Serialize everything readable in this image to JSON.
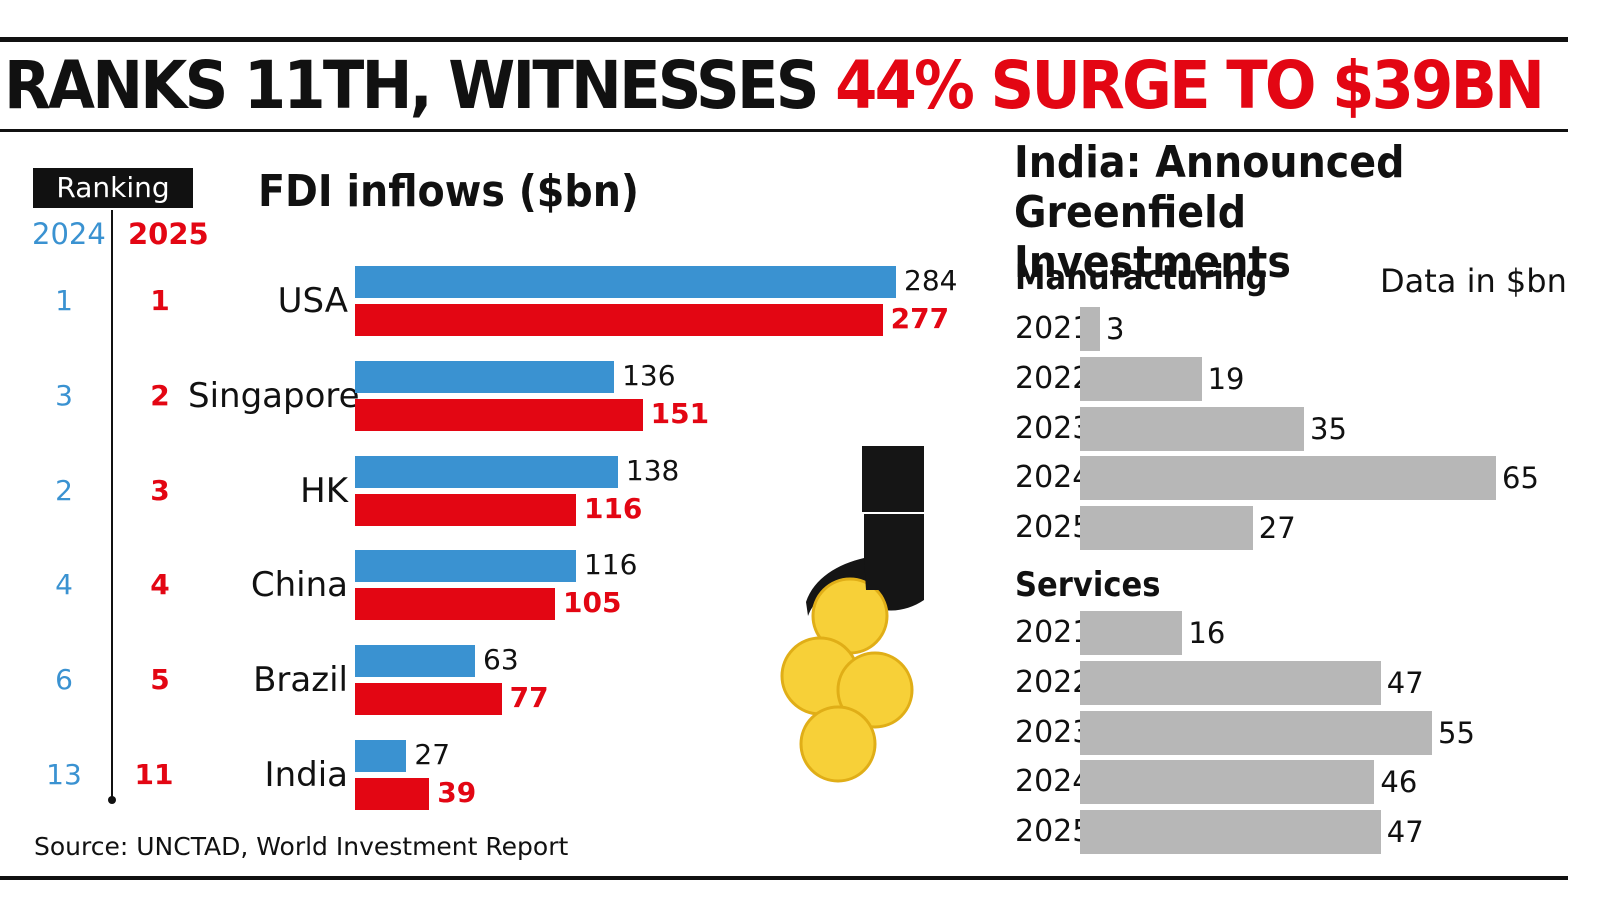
{
  "headline": {
    "part1": "RANKS 11TH, WITNESSES ",
    "part2": "44% SURGE TO $39BN"
  },
  "ranking": {
    "label": "Ranking",
    "year_a": "2024",
    "year_b": "2025"
  },
  "source": "Source: UNCTAD, World Investment Report",
  "colors": {
    "series_2024": "#3a92d1",
    "series_2025": "#e30613",
    "greenfield_bar": "#b7b7b7",
    "text": "#111111"
  },
  "illustration": "hand-dropping-coins-icon",
  "chart_data": [
    {
      "type": "bar",
      "orientation": "horizontal",
      "title": "FDI inflows ($bn)",
      "categories": [
        "USA",
        "Singapore",
        "HK",
        "China",
        "Brazil",
        "India"
      ],
      "ranks_2024": [
        "1",
        "3",
        "2",
        "4",
        "6",
        "13"
      ],
      "ranks_2025": [
        "1",
        "2",
        "3",
        "4",
        "5",
        "11"
      ],
      "series": [
        {
          "values": [
            284,
            136,
            138,
            116,
            63,
            27
          ]
        },
        {
          "values": [
            277,
            151,
            116,
            105,
            77,
            39
          ]
        }
      ],
      "xlim": [
        0,
        290
      ],
      "grid": false,
      "legend": "none"
    },
    {
      "type": "bar",
      "orientation": "horizontal",
      "title": "India: Announced Greenfield Investments",
      "note": "Data in $bn",
      "panels": [
        {
          "title": "Manufacturing",
          "categories": [
            "2021",
            "2022",
            "2023",
            "2024",
            "2025"
          ],
          "values": [
            3,
            19,
            35,
            65,
            27
          ]
        },
        {
          "title": "Services",
          "categories": [
            "2021",
            "2022",
            "2023",
            "2024",
            "2025"
          ],
          "values": [
            16,
            47,
            55,
            46,
            47
          ]
        }
      ],
      "xlim": [
        0,
        65
      ],
      "grid": false,
      "legend": "none"
    }
  ]
}
